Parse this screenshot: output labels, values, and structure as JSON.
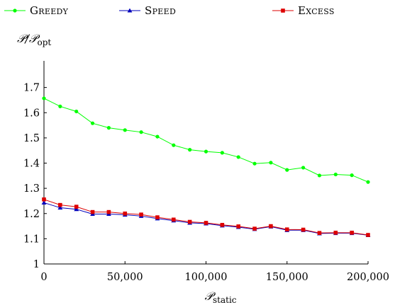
{
  "chart_data": {
    "type": "line",
    "ylabel_main": "𝒫/𝒫",
    "ylabel_sub": "opt",
    "xlabel_main": "𝒫",
    "xlabel_sub": "static",
    "xlim": [
      0,
      200000
    ],
    "ylim": [
      1,
      1.8
    ],
    "x_ticks": [
      0,
      50000,
      100000,
      150000,
      200000
    ],
    "x_tick_labels": [
      "0",
      "50,000",
      "100,000",
      "150,000",
      "200,000"
    ],
    "y_ticks": [
      1,
      1.1,
      1.2,
      1.3,
      1.4,
      1.5,
      1.6,
      1.7
    ],
    "y_tick_labels": [
      "1",
      "1.1",
      "1.2",
      "1.3",
      "1.4",
      "1.5",
      "1.6",
      "1.7"
    ],
    "grid": false,
    "legend_placement": "top",
    "x": [
      0,
      10000,
      20000,
      30000,
      40000,
      50000,
      60000,
      70000,
      80000,
      90000,
      100000,
      110000,
      120000,
      130000,
      140000,
      150000,
      160000,
      170000,
      180000,
      190000,
      200000
    ],
    "series": [
      {
        "name": "Greedy",
        "color": "#00ff00",
        "marker": "circle",
        "values": [
          1.657,
          1.625,
          1.605,
          1.558,
          1.54,
          1.531,
          1.523,
          1.505,
          1.471,
          1.453,
          1.446,
          1.441,
          1.424,
          1.398,
          1.402,
          1.373,
          1.382,
          1.351,
          1.355,
          1.352,
          1.325
        ]
      },
      {
        "name": "Speed",
        "color": "#0000bb",
        "marker": "triangle",
        "values": [
          1.243,
          1.223,
          1.217,
          1.198,
          1.198,
          1.195,
          1.19,
          1.18,
          1.172,
          1.163,
          1.16,
          1.152,
          1.146,
          1.138,
          1.148,
          1.134,
          1.134,
          1.121,
          1.122,
          1.122,
          1.114
        ]
      },
      {
        "name": "Excess",
        "color": "#dd0000",
        "marker": "square",
        "values": [
          1.256,
          1.234,
          1.227,
          1.206,
          1.206,
          1.2,
          1.196,
          1.185,
          1.176,
          1.167,
          1.163,
          1.155,
          1.149,
          1.14,
          1.15,
          1.137,
          1.136,
          1.123,
          1.124,
          1.124,
          1.115
        ]
      }
    ]
  }
}
